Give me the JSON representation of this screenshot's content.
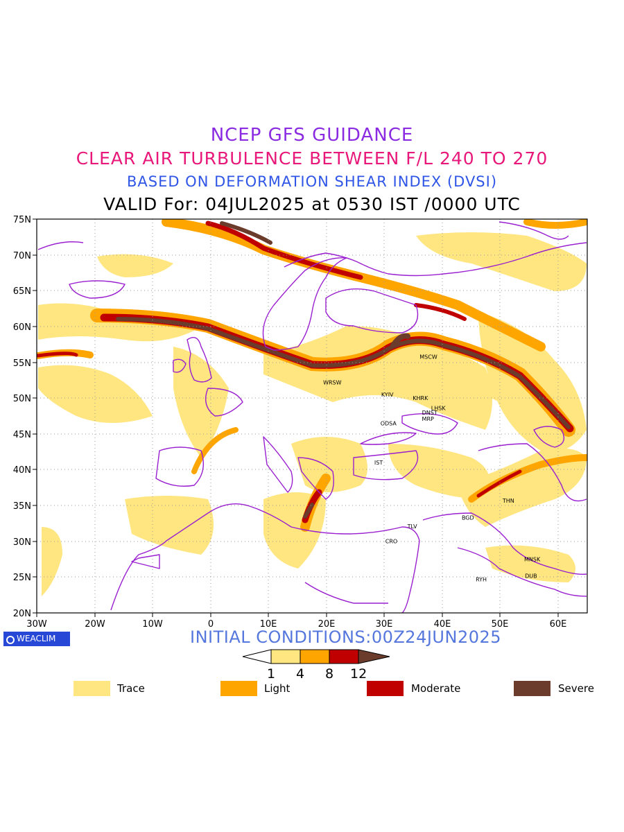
{
  "header": {
    "line1": "NCEP GFS GUIDANCE",
    "line2": "CLEAR AIR TURBULENCE BETWEEN F/L 240 TO 270",
    "line3": "BASED ON DEFORMATION SHEAR INDEX (DVSI)",
    "line4": "VALID For: 04JUL2025 at 0530 IST /0000 UTC"
  },
  "axes": {
    "lat_labels": [
      "75N",
      "70N",
      "65N",
      "60N",
      "55N",
      "50N",
      "45N",
      "40N",
      "35N",
      "30N",
      "25N",
      "20N"
    ],
    "lon_labels": [
      "30W",
      "20W",
      "10W",
      "0",
      "10E",
      "20E",
      "30E",
      "40E",
      "50E",
      "60E"
    ]
  },
  "cities": [
    {
      "name": "MSCW",
      "lon": 37.6,
      "lat": 55.8
    },
    {
      "name": "WRSW",
      "lon": 21.0,
      "lat": 52.2
    },
    {
      "name": "KYIV",
      "lon": 30.5,
      "lat": 50.5
    },
    {
      "name": "KHRK",
      "lon": 36.2,
      "lat": 50.0
    },
    {
      "name": "LHSK",
      "lon": 39.3,
      "lat": 48.6
    },
    {
      "name": "DNST",
      "lon": 37.8,
      "lat": 48.0
    },
    {
      "name": "MRP",
      "lon": 37.5,
      "lat": 47.1
    },
    {
      "name": "ODSA",
      "lon": 30.7,
      "lat": 46.5
    },
    {
      "name": "IST",
      "lon": 29.0,
      "lat": 41.0
    },
    {
      "name": "THN",
      "lon": 51.4,
      "lat": 35.7
    },
    {
      "name": "BGD",
      "lon": 44.4,
      "lat": 33.3
    },
    {
      "name": "TLV",
      "lon": 34.8,
      "lat": 32.1
    },
    {
      "name": "CRO",
      "lon": 31.2,
      "lat": 30.0
    },
    {
      "name": "MNSK",
      "lon": 55.5,
      "lat": 27.5
    },
    {
      "name": "RYH",
      "lon": 46.7,
      "lat": 24.7
    },
    {
      "name": "DUB",
      "lon": 55.3,
      "lat": 25.2
    }
  ],
  "footer": {
    "badge": "WEACLIM",
    "initial_conditions": "INITIAL CONDITIONS:00Z24JUN2025"
  },
  "colorbar": {
    "ticks": [
      "1",
      "4",
      "8",
      "12"
    ],
    "colors": [
      "#ffe680",
      "#ffa500",
      "#c00000",
      "#6b3b2b"
    ]
  },
  "legend": [
    {
      "label": "Trace",
      "color": "#ffe680"
    },
    {
      "label": "Light",
      "color": "#ffa500"
    },
    {
      "label": "Moderate",
      "color": "#c00000"
    },
    {
      "label": "Severe",
      "color": "#6b3b2b"
    }
  ]
}
